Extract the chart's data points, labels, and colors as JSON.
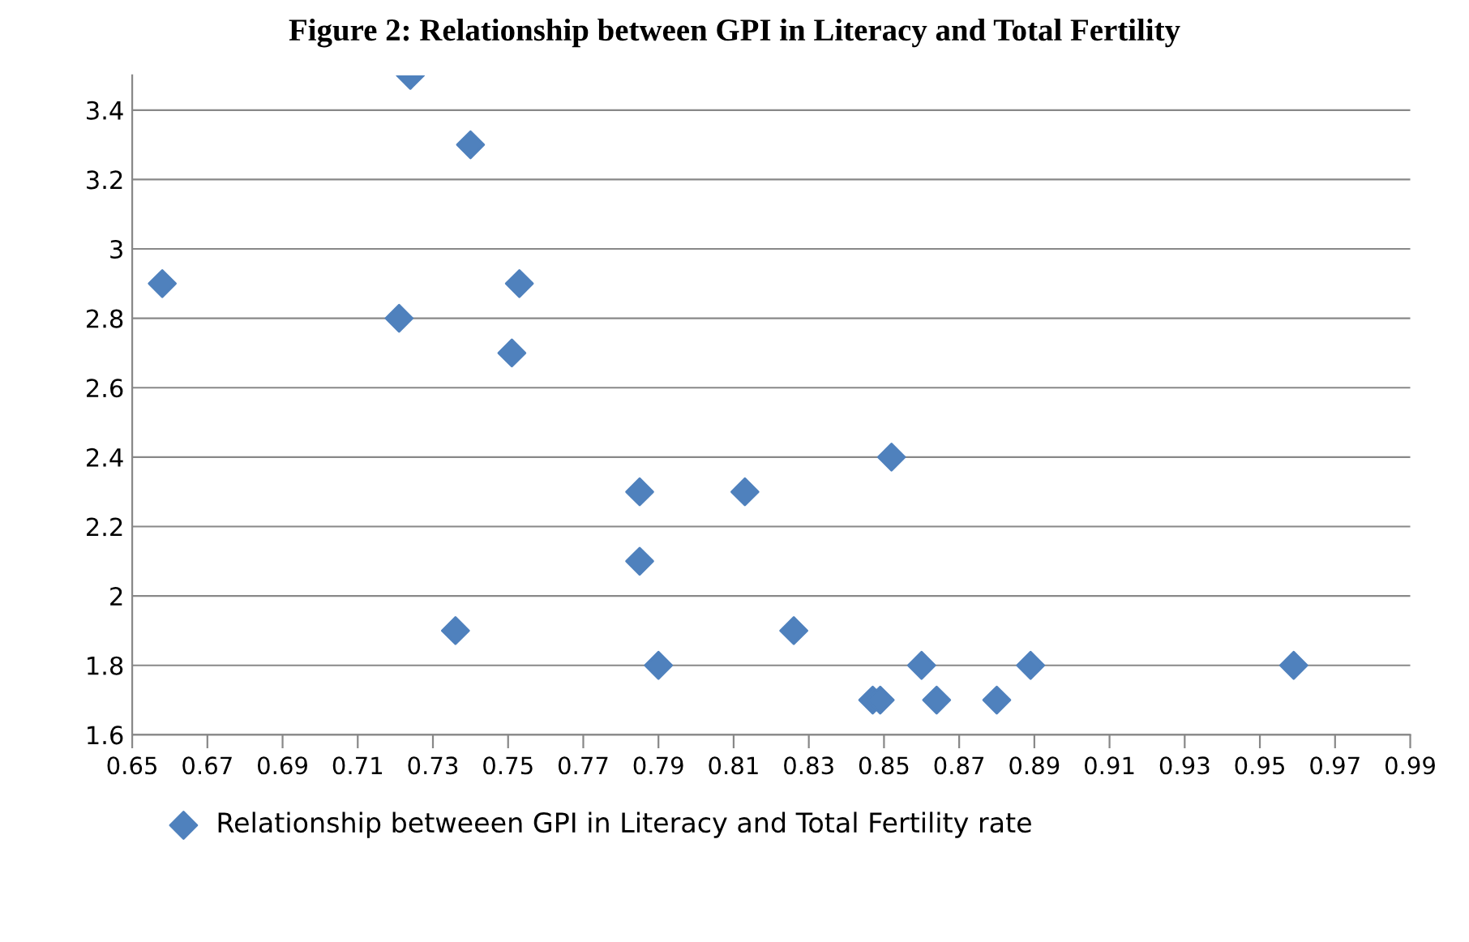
{
  "chart_data": {
    "type": "scatter",
    "title": "Figure 2: Relationship between GPI in Literacy and Total Fertility",
    "x": [
      0.658,
      0.724,
      0.74,
      0.721,
      0.753,
      0.751,
      0.785,
      0.785,
      0.813,
      0.736,
      0.79,
      0.826,
      0.852,
      0.847,
      0.849,
      0.86,
      0.864,
      0.88,
      0.889,
      0.959
    ],
    "series": [
      {
        "name": "Relationship betweeen GPI in Literacy and Total Fertility rate",
        "color": "#4f81bd",
        "values": [
          2.9,
          3.5,
          3.3,
          2.8,
          2.9,
          2.7,
          2.3,
          2.1,
          2.3,
          1.9,
          1.8,
          1.9,
          2.4,
          1.7,
          1.7,
          1.8,
          1.7,
          1.7,
          1.8,
          1.8
        ]
      }
    ],
    "xlim": [
      0.65,
      0.99
    ],
    "xticks": [
      0.65,
      0.67,
      0.69,
      0.71,
      0.73,
      0.75,
      0.77,
      0.79,
      0.81,
      0.83,
      0.85,
      0.87,
      0.89,
      0.91,
      0.93,
      0.95,
      0.97,
      0.99
    ],
    "ylim": [
      1.6,
      3.5
    ],
    "yticks": [
      1.6,
      1.8,
      2,
      2.2,
      2.4,
      2.6,
      2.8,
      3,
      3.2,
      3.4
    ],
    "grid": "y",
    "legend": "bottom",
    "marker": "diamond"
  }
}
